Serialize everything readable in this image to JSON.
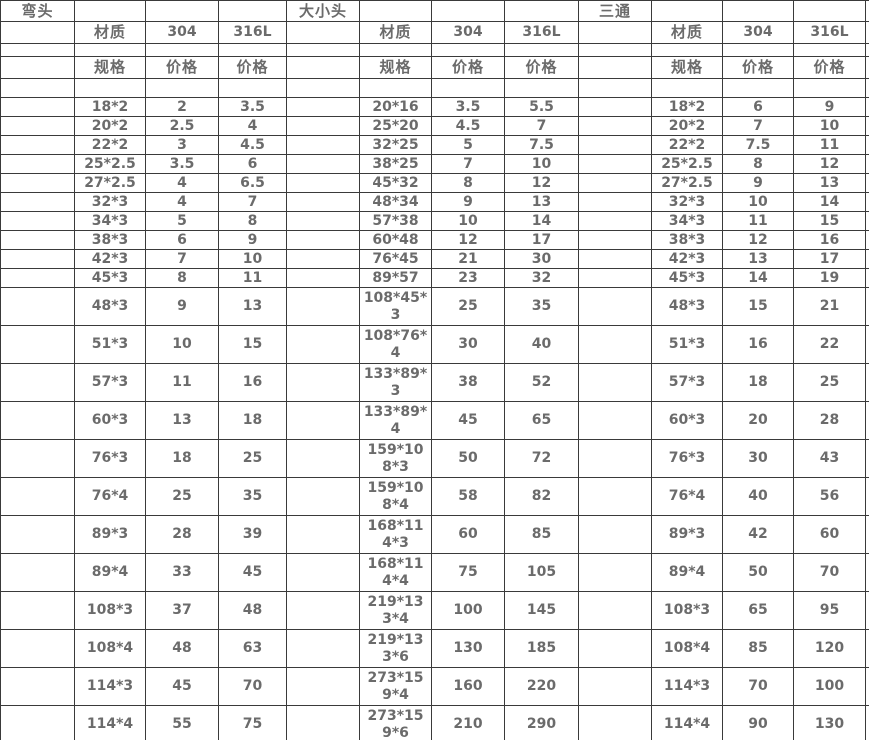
{
  "sheet": {
    "background_color": "#ffffff",
    "border_color": "#3a3a3a",
    "text_color": "#6b6b6b"
  },
  "tables": [
    {
      "title": "弯头",
      "headers": {
        "material": "材质",
        "grade_304": "304",
        "grade_316l": "316L",
        "spec": "规格",
        "price": "价格"
      },
      "rows": [
        [
          "18*2",
          "2",
          "3.5"
        ],
        [
          "20*2",
          "2.5",
          "4"
        ],
        [
          "22*2",
          "3",
          "4.5"
        ],
        [
          "25*2.5",
          "3.5",
          "6"
        ],
        [
          "27*2.5",
          "4",
          "6.5"
        ],
        [
          "32*3",
          "4",
          "7"
        ],
        [
          "34*3",
          "5",
          "8"
        ],
        [
          "38*3",
          "6",
          "9"
        ],
        [
          "42*3",
          "7",
          "10"
        ],
        [
          "45*3",
          "8",
          "11"
        ],
        [
          "48*3",
          "9",
          "13"
        ],
        [
          "51*3",
          "10",
          "15"
        ],
        [
          "57*3",
          "11",
          "16"
        ],
        [
          "60*3",
          "13",
          "18"
        ],
        [
          "76*3",
          "18",
          "25"
        ],
        [
          "76*4",
          "25",
          "35"
        ],
        [
          "89*3",
          "28",
          "39"
        ],
        [
          "89*4",
          "33",
          "45"
        ],
        [
          "108*3",
          "37",
          "48"
        ],
        [
          "108*4",
          "48",
          "63"
        ],
        [
          "114*3",
          "45",
          "70"
        ],
        [
          "114*4",
          "55",
          "75"
        ]
      ]
    },
    {
      "title": "大小头",
      "headers": {
        "material": "材质",
        "grade_304": "304",
        "grade_316l": "316L",
        "spec": "规格",
        "price": "价格"
      },
      "rows": [
        [
          "20*16",
          "3.5",
          "5.5"
        ],
        [
          "25*20",
          "4.5",
          "7"
        ],
        [
          "32*25",
          "5",
          "7.5"
        ],
        [
          "38*25",
          "7",
          "10"
        ],
        [
          "45*32",
          "8",
          "12"
        ],
        [
          "48*34",
          "9",
          "13"
        ],
        [
          "57*38",
          "10",
          "14"
        ],
        [
          "60*48",
          "12",
          "17"
        ],
        [
          "76*45",
          "21",
          "30"
        ],
        [
          "89*57",
          "23",
          "32"
        ],
        [
          "108*45*3",
          "25",
          "35"
        ],
        [
          "108*76*4",
          "30",
          "40"
        ],
        [
          "133*89*3",
          "38",
          "52"
        ],
        [
          "133*89*4",
          "45",
          "65"
        ],
        [
          "159*108*3",
          "50",
          "72"
        ],
        [
          "159*108*4",
          "58",
          "82"
        ],
        [
          "168*114*3",
          "60",
          "85"
        ],
        [
          "168*114*4",
          "75",
          "105"
        ],
        [
          "219*133*4",
          "100",
          "145"
        ],
        [
          "219*133*6",
          "130",
          "185"
        ],
        [
          "273*159*4",
          "160",
          "220"
        ],
        [
          "273*159*6",
          "210",
          "290"
        ]
      ]
    },
    {
      "title": "三通",
      "headers": {
        "material": "材质",
        "grade_304": "304",
        "grade_316l": "316L",
        "spec": "规格",
        "price": "价格"
      },
      "rows": [
        [
          "18*2",
          "6",
          "9"
        ],
        [
          "20*2",
          "7",
          "10"
        ],
        [
          "22*2",
          "7.5",
          "11"
        ],
        [
          "25*2.5",
          "8",
          "12"
        ],
        [
          "27*2.5",
          "9",
          "13"
        ],
        [
          "32*3",
          "10",
          "14"
        ],
        [
          "34*3",
          "11",
          "15"
        ],
        [
          "38*3",
          "12",
          "16"
        ],
        [
          "42*3",
          "13",
          "17"
        ],
        [
          "45*3",
          "14",
          "19"
        ],
        [
          "48*3",
          "15",
          "21"
        ],
        [
          "51*3",
          "16",
          "22"
        ],
        [
          "57*3",
          "18",
          "25"
        ],
        [
          "60*3",
          "20",
          "28"
        ],
        [
          "76*3",
          "30",
          "43"
        ],
        [
          "76*4",
          "40",
          "56"
        ],
        [
          "89*3",
          "42",
          "60"
        ],
        [
          "89*4",
          "50",
          "70"
        ],
        [
          "108*3",
          "65",
          "95"
        ],
        [
          "108*4",
          "85",
          "120"
        ],
        [
          "114*3",
          "70",
          "100"
        ],
        [
          "114*4",
          "90",
          "130"
        ]
      ]
    }
  ]
}
